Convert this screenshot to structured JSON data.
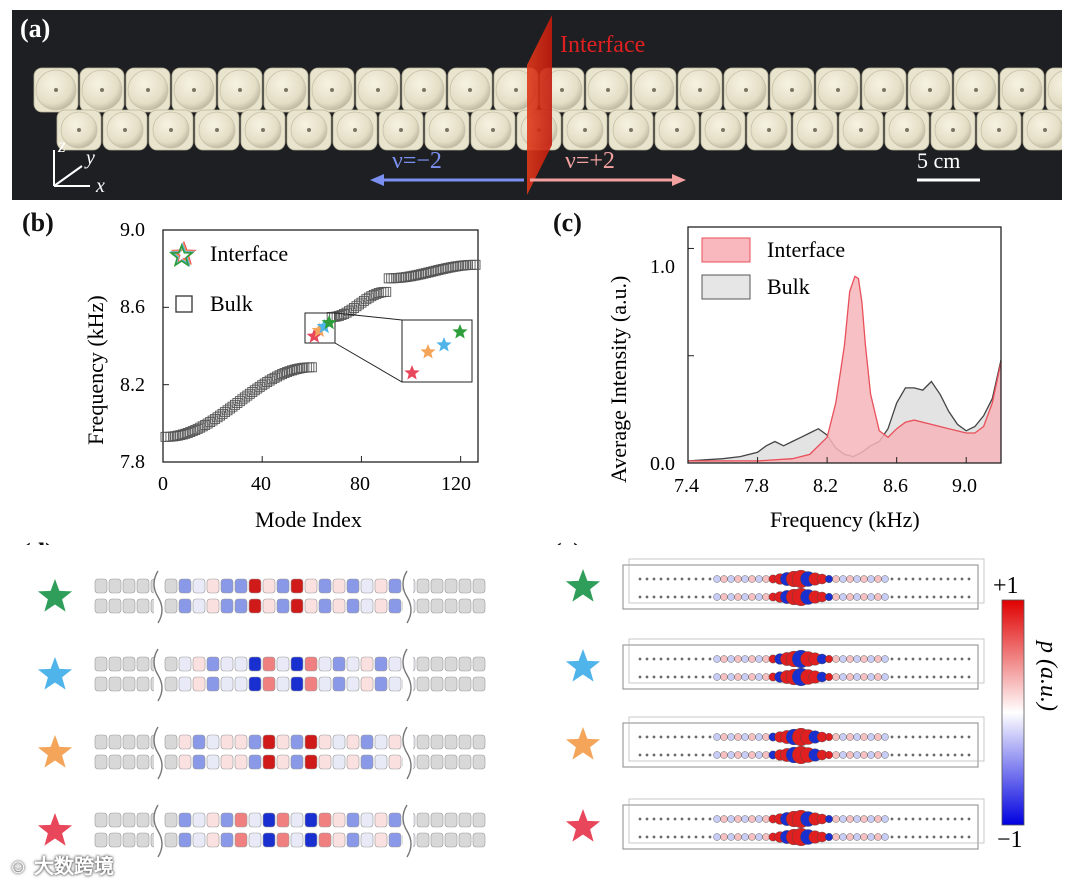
{
  "panels": {
    "a": "(a)",
    "b": "(b)",
    "c": "(c)",
    "d": "(d)",
    "e": "(e)"
  },
  "photo": {
    "interface_label": "Interface",
    "nu_left": "ν=−2",
    "nu_right": "ν=+2",
    "scale_bar": "5 cm",
    "axes": {
      "z": "z",
      "y": "y",
      "x": "x"
    },
    "colors": {
      "interface": "#e02020",
      "left_arrow": "#7b8ff0",
      "right_arrow": "#f2a0a0"
    }
  },
  "chart_b": {
    "type": "scatter",
    "xlabel": "Mode Index",
    "ylabel": "Frequency (kHz)",
    "xlim": [
      0,
      127
    ],
    "ylim": [
      7.8,
      9.0
    ],
    "xticks": [
      "0",
      "40",
      "80",
      "120"
    ],
    "yticks": [
      "7.8",
      "8.2",
      "8.6",
      "9.0"
    ],
    "legend": {
      "interface": "Interface",
      "bulk": "Bulk",
      "position": "top-left"
    },
    "bulk_segments": [
      {
        "x_start": 1,
        "x_end": 60,
        "y_start": 7.93,
        "y_end": 8.29
      },
      {
        "x_start": 68,
        "x_end": 90,
        "y_start": 8.55,
        "y_end": 8.68
      },
      {
        "x_start": 91,
        "x_end": 126,
        "y_start": 8.75,
        "y_end": 8.82
      }
    ],
    "interface_modes": [
      {
        "x": 61,
        "y": 8.45,
        "color": "#e8465a"
      },
      {
        "x": 63,
        "y": 8.48,
        "color": "#f5a55a"
      },
      {
        "x": 65,
        "y": 8.5,
        "color": "#4fb4ea"
      },
      {
        "x": 67,
        "y": 8.52,
        "color": "#2e9e3a"
      }
    ]
  },
  "chart_c": {
    "type": "area",
    "xlabel": "Frequency (kHz)",
    "ylabel": "Average Intensity (a.u.)",
    "xlim": [
      7.4,
      9.2
    ],
    "ylim": [
      0.0,
      1.1
    ],
    "xticks": [
      "7.4",
      "7.8",
      "8.2",
      "8.6",
      "9.0"
    ],
    "yticks": [
      "0.0",
      "0.5",
      "1.0"
    ],
    "legend": {
      "interface": "Interface",
      "bulk": "Bulk",
      "position": "top-left"
    },
    "series": [
      {
        "name": "Interface",
        "color": "#e8505a",
        "x": [
          7.4,
          7.8,
          8.0,
          8.1,
          8.2,
          8.25,
          8.3,
          8.33,
          8.36,
          8.38,
          8.4,
          8.42,
          8.45,
          8.5,
          8.55,
          8.6,
          8.65,
          8.7,
          8.8,
          8.9,
          9.0,
          9.05,
          9.1,
          9.15,
          9.2
        ],
        "values": [
          0.01,
          0.01,
          0.02,
          0.04,
          0.12,
          0.28,
          0.55,
          0.8,
          0.87,
          0.86,
          0.75,
          0.55,
          0.32,
          0.15,
          0.12,
          0.16,
          0.19,
          0.2,
          0.18,
          0.16,
          0.14,
          0.14,
          0.17,
          0.28,
          0.47
        ]
      },
      {
        "name": "Bulk",
        "color": "#444444",
        "x": [
          7.4,
          7.6,
          7.7,
          7.8,
          7.85,
          7.9,
          7.95,
          8.0,
          8.05,
          8.1,
          8.15,
          8.2,
          8.25,
          8.3,
          8.35,
          8.4,
          8.45,
          8.5,
          8.55,
          8.6,
          8.65,
          8.7,
          8.75,
          8.8,
          8.85,
          8.9,
          8.95,
          9.0,
          9.05,
          9.1,
          9.15,
          9.2
        ],
        "values": [
          0.01,
          0.02,
          0.03,
          0.05,
          0.08,
          0.1,
          0.08,
          0.1,
          0.12,
          0.14,
          0.16,
          0.13,
          0.07,
          0.04,
          0.03,
          0.05,
          0.08,
          0.1,
          0.16,
          0.28,
          0.35,
          0.35,
          0.34,
          0.38,
          0.32,
          0.24,
          0.18,
          0.15,
          0.17,
          0.22,
          0.3,
          0.48
        ]
      }
    ]
  },
  "panel_d": {
    "rows": 4
  },
  "panel_e": {
    "colorbar": {
      "max": "+1",
      "min": "−1",
      "label": "p (a.u.)"
    }
  },
  "star_colors": [
    "#2e9e5a",
    "#4fb4ea",
    "#f5a55a",
    "#e8465a"
  ],
  "watermark": "大数跨境"
}
